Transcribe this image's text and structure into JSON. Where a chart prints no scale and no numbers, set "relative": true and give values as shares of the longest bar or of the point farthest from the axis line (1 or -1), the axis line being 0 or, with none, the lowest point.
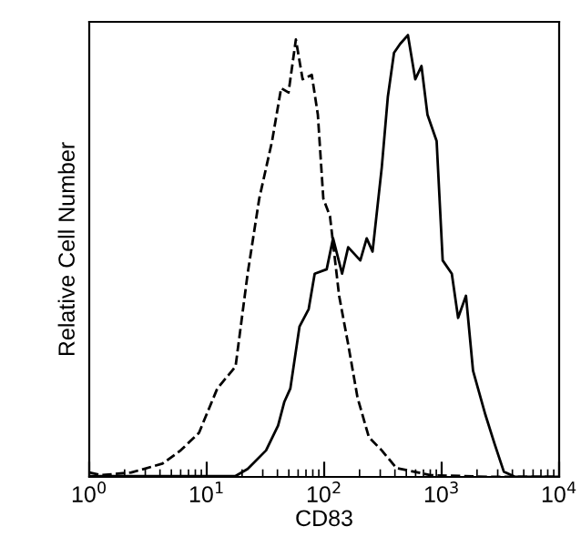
{
  "chart_data": {
    "type": "line",
    "xlabel": "CD83",
    "ylabel": "Relative Cell Number",
    "relative": true,
    "log": "x",
    "xlim": [
      1,
      10000
    ],
    "xticks": [
      {
        "value": 1,
        "label": "10$^{0}$"
      },
      {
        "value": 10,
        "label": "10$^{1}$"
      },
      {
        "value": 100,
        "label": "10$^{2}$"
      },
      {
        "value": 1000,
        "label": "10$^{3}$"
      },
      {
        "value": 10000,
        "label": "10$^{4}$"
      }
    ],
    "grid": false,
    "legend": false,
    "tick_labels": "x",
    "series": [
      {
        "color": "#000000",
        "line_style": "dashed",
        "x": [
          1,
          1.27,
          2.28,
          4.2,
          6.0,
          8.6,
          12.3,
          17.6,
          22.3,
          28.0,
          36.0,
          43.0,
          49.7,
          57.4,
          65.5,
          78.4,
          88.3,
          98.3,
          112,
          134,
          160,
          192,
          240,
          309,
          412,
          805,
          2650,
          10000
        ],
        "values": [
          0.01,
          0.004,
          0.01,
          0.03,
          0.06,
          0.1,
          0.2,
          0.25,
          0.46,
          0.63,
          0.76,
          0.88,
          0.87,
          0.99,
          0.9,
          0.91,
          0.82,
          0.63,
          0.59,
          0.41,
          0.3,
          0.18,
          0.09,
          0.06,
          0.02,
          0.004,
          0,
          0
        ]
      },
      {
        "color": "#000000",
        "line_style": "solid",
        "x": [
          1,
          17.6,
          22.3,
          32.0,
          40.5,
          45.8,
          51.5,
          61.6,
          73.8,
          83.0,
          105,
          119,
          142,
          160,
          203,
          230,
          258,
          309,
          348,
          393,
          443,
          516,
          596,
          673,
          757,
          906,
          1020,
          1220,
          1380,
          1610,
          1850,
          2360,
          2820,
          3380,
          4230,
          10000
        ],
        "values": [
          0.002,
          0.002,
          0.018,
          0.06,
          0.116,
          0.17,
          0.2,
          0.34,
          0.38,
          0.46,
          0.47,
          0.54,
          0.46,
          0.52,
          0.49,
          0.54,
          0.51,
          0.7,
          0.86,
          0.96,
          0.98,
          1.0,
          0.9,
          0.93,
          0.82,
          0.76,
          0.49,
          0.46,
          0.36,
          0.41,
          0.24,
          0.14,
          0.075,
          0.012,
          0,
          0
        ]
      }
    ]
  }
}
